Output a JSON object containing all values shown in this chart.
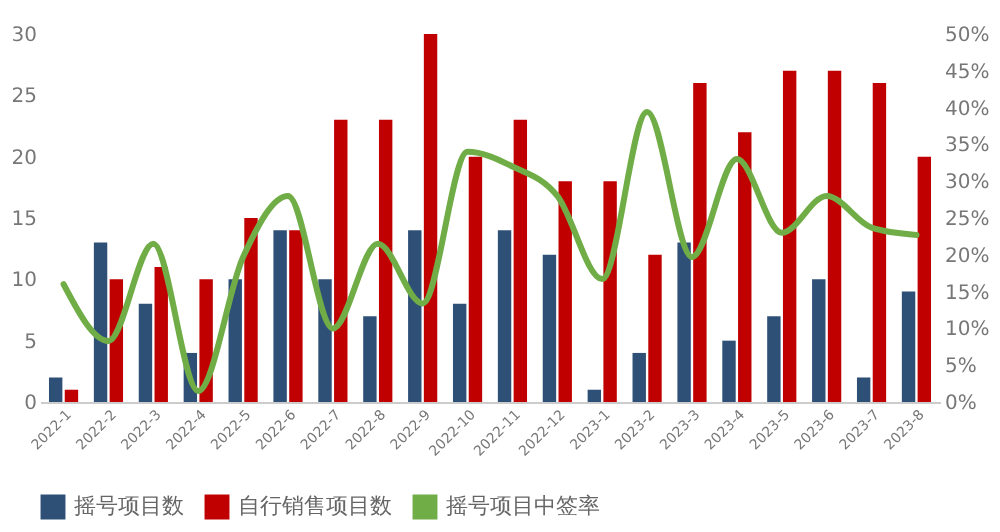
{
  "chart_data": {
    "type": "bar",
    "categories": [
      "2022-1",
      "2022-2",
      "2022-3",
      "2022-4",
      "2022-5",
      "2022-6",
      "2022-7",
      "2022-8",
      "2022-9",
      "2022-10",
      "2022-11",
      "2022-12",
      "2023-1",
      "2023-2",
      "2023-3",
      "2023-4",
      "2023-5",
      "2023-6",
      "2023-7",
      "2023-8"
    ],
    "series": [
      {
        "name": "摇号项目数",
        "color": "#2e5077",
        "values": [
          2,
          13,
          8,
          4,
          10,
          14,
          10,
          7,
          14,
          8,
          14,
          12,
          1,
          4,
          13,
          5,
          7,
          10,
          2,
          9
        ]
      },
      {
        "name": "自行销售项目数",
        "color": "#c00000",
        "values": [
          1,
          10,
          11,
          10,
          15,
          14,
          23,
          23,
          30,
          20,
          23,
          18,
          18,
          12,
          26,
          22,
          27,
          27,
          26,
          20
        ]
      },
      {
        "name": "摇号项目中签率",
        "type": "line",
        "axis": "y2",
        "color": "#70ad47",
        "values": [
          16,
          8.3,
          21.5,
          1.5,
          19.7,
          28,
          10,
          21.5,
          13.4,
          34,
          32,
          28,
          16.7,
          39.4,
          19.7,
          33,
          23,
          28,
          23.7,
          22.7
        ]
      }
    ],
    "ylim": [
      0,
      30
    ],
    "yticks": [
      0,
      5,
      10,
      15,
      20,
      25,
      30
    ],
    "y2lim": [
      0,
      50
    ],
    "y2ticks": [
      {
        "value": 0,
        "label": "0%"
      },
      {
        "value": 5,
        "label": "5%"
      },
      {
        "value": 10,
        "label": "10%"
      },
      {
        "value": 15,
        "label": "15%"
      },
      {
        "value": 20,
        "label": "20%"
      },
      {
        "value": 25,
        "label": "25%"
      },
      {
        "value": 30,
        "label": "30%"
      },
      {
        "value": 35,
        "label": "35%"
      },
      {
        "value": 40,
        "label": "40%"
      },
      {
        "value": 45,
        "label": "45%"
      },
      {
        "value": 50,
        "label": "50%"
      }
    ],
    "legend": "bottom",
    "grid": false,
    "marker": "none"
  }
}
